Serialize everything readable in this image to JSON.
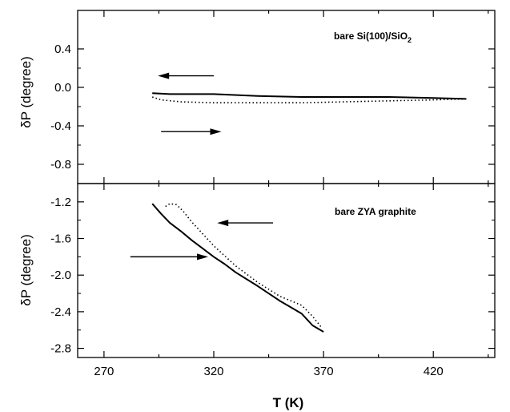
{
  "chart_data": [
    {
      "type": "line",
      "panel": "top",
      "annotation": {
        "main": "bare Si(100)/SiO",
        "sub": "2"
      },
      "ylabel": "δP (degree)",
      "ylim": [
        -1.0,
        0.8
      ],
      "yticks": [
        0.4,
        0.0,
        -0.4,
        -0.8
      ],
      "ytick_labels": [
        "0.4",
        "0.0",
        "-0.4",
        "-0.8"
      ],
      "xlim": [
        258,
        448
      ],
      "series": [
        {
          "style": "solid",
          "x": [
            292,
            300,
            320,
            340,
            360,
            380,
            400,
            420,
            435
          ],
          "y": [
            -0.06,
            -0.07,
            -0.07,
            -0.09,
            -0.1,
            -0.1,
            -0.1,
            -0.11,
            -0.12
          ]
        },
        {
          "style": "dotted",
          "x": [
            292,
            296,
            305,
            320,
            340,
            360,
            380,
            400,
            420,
            435
          ],
          "y": [
            -0.1,
            -0.13,
            -0.15,
            -0.16,
            -0.16,
            -0.16,
            -0.15,
            -0.14,
            -0.13,
            -0.12
          ]
        }
      ],
      "arrows": [
        {
          "direction": "left",
          "x": [
            320,
            296
          ],
          "y": [
            0.12,
            0.12
          ]
        },
        {
          "direction": "right",
          "x": [
            296,
            322
          ],
          "y": [
            -0.46,
            -0.46
          ]
        }
      ]
    },
    {
      "type": "line",
      "panel": "bottom",
      "annotation": {
        "main": "bare ZYA graphite",
        "sub": ""
      },
      "ylabel": "δP (degree)",
      "xlabel": "T (K)",
      "ylim": [
        -2.9,
        -1.0
      ],
      "yticks": [
        -1.2,
        -1.6,
        -2.0,
        -2.4,
        -2.8
      ],
      "ytick_labels": [
        "-1.2",
        "-1.6",
        "-2.0",
        "-2.4",
        "-2.8"
      ],
      "xlim": [
        258,
        448
      ],
      "xticks": [
        270,
        320,
        370,
        420
      ],
      "xtick_labels": [
        "270",
        "320",
        "370",
        "420"
      ],
      "series": [
        {
          "style": "solid",
          "x": [
            292,
            296,
            300,
            305,
            310,
            315,
            320,
            325,
            330,
            340,
            350,
            360,
            365,
            370
          ],
          "y": [
            -1.22,
            -1.33,
            -1.43,
            -1.52,
            -1.62,
            -1.71,
            -1.8,
            -1.88,
            -1.97,
            -2.12,
            -2.28,
            -2.42,
            -2.55,
            -2.62
          ]
        },
        {
          "style": "dotted",
          "x": [
            298,
            300,
            303,
            306,
            310,
            320,
            330,
            340,
            350,
            360,
            365,
            369
          ],
          "y": [
            -1.25,
            -1.22,
            -1.23,
            -1.3,
            -1.42,
            -1.68,
            -1.9,
            -2.08,
            -2.23,
            -2.33,
            -2.45,
            -2.57
          ]
        }
      ],
      "arrows": [
        {
          "direction": "left",
          "x": [
            347,
            323
          ],
          "y": [
            -1.43,
            -1.43
          ]
        },
        {
          "direction": "right",
          "x": [
            282,
            316
          ],
          "y": [
            -1.8,
            -1.8
          ]
        }
      ]
    }
  ]
}
